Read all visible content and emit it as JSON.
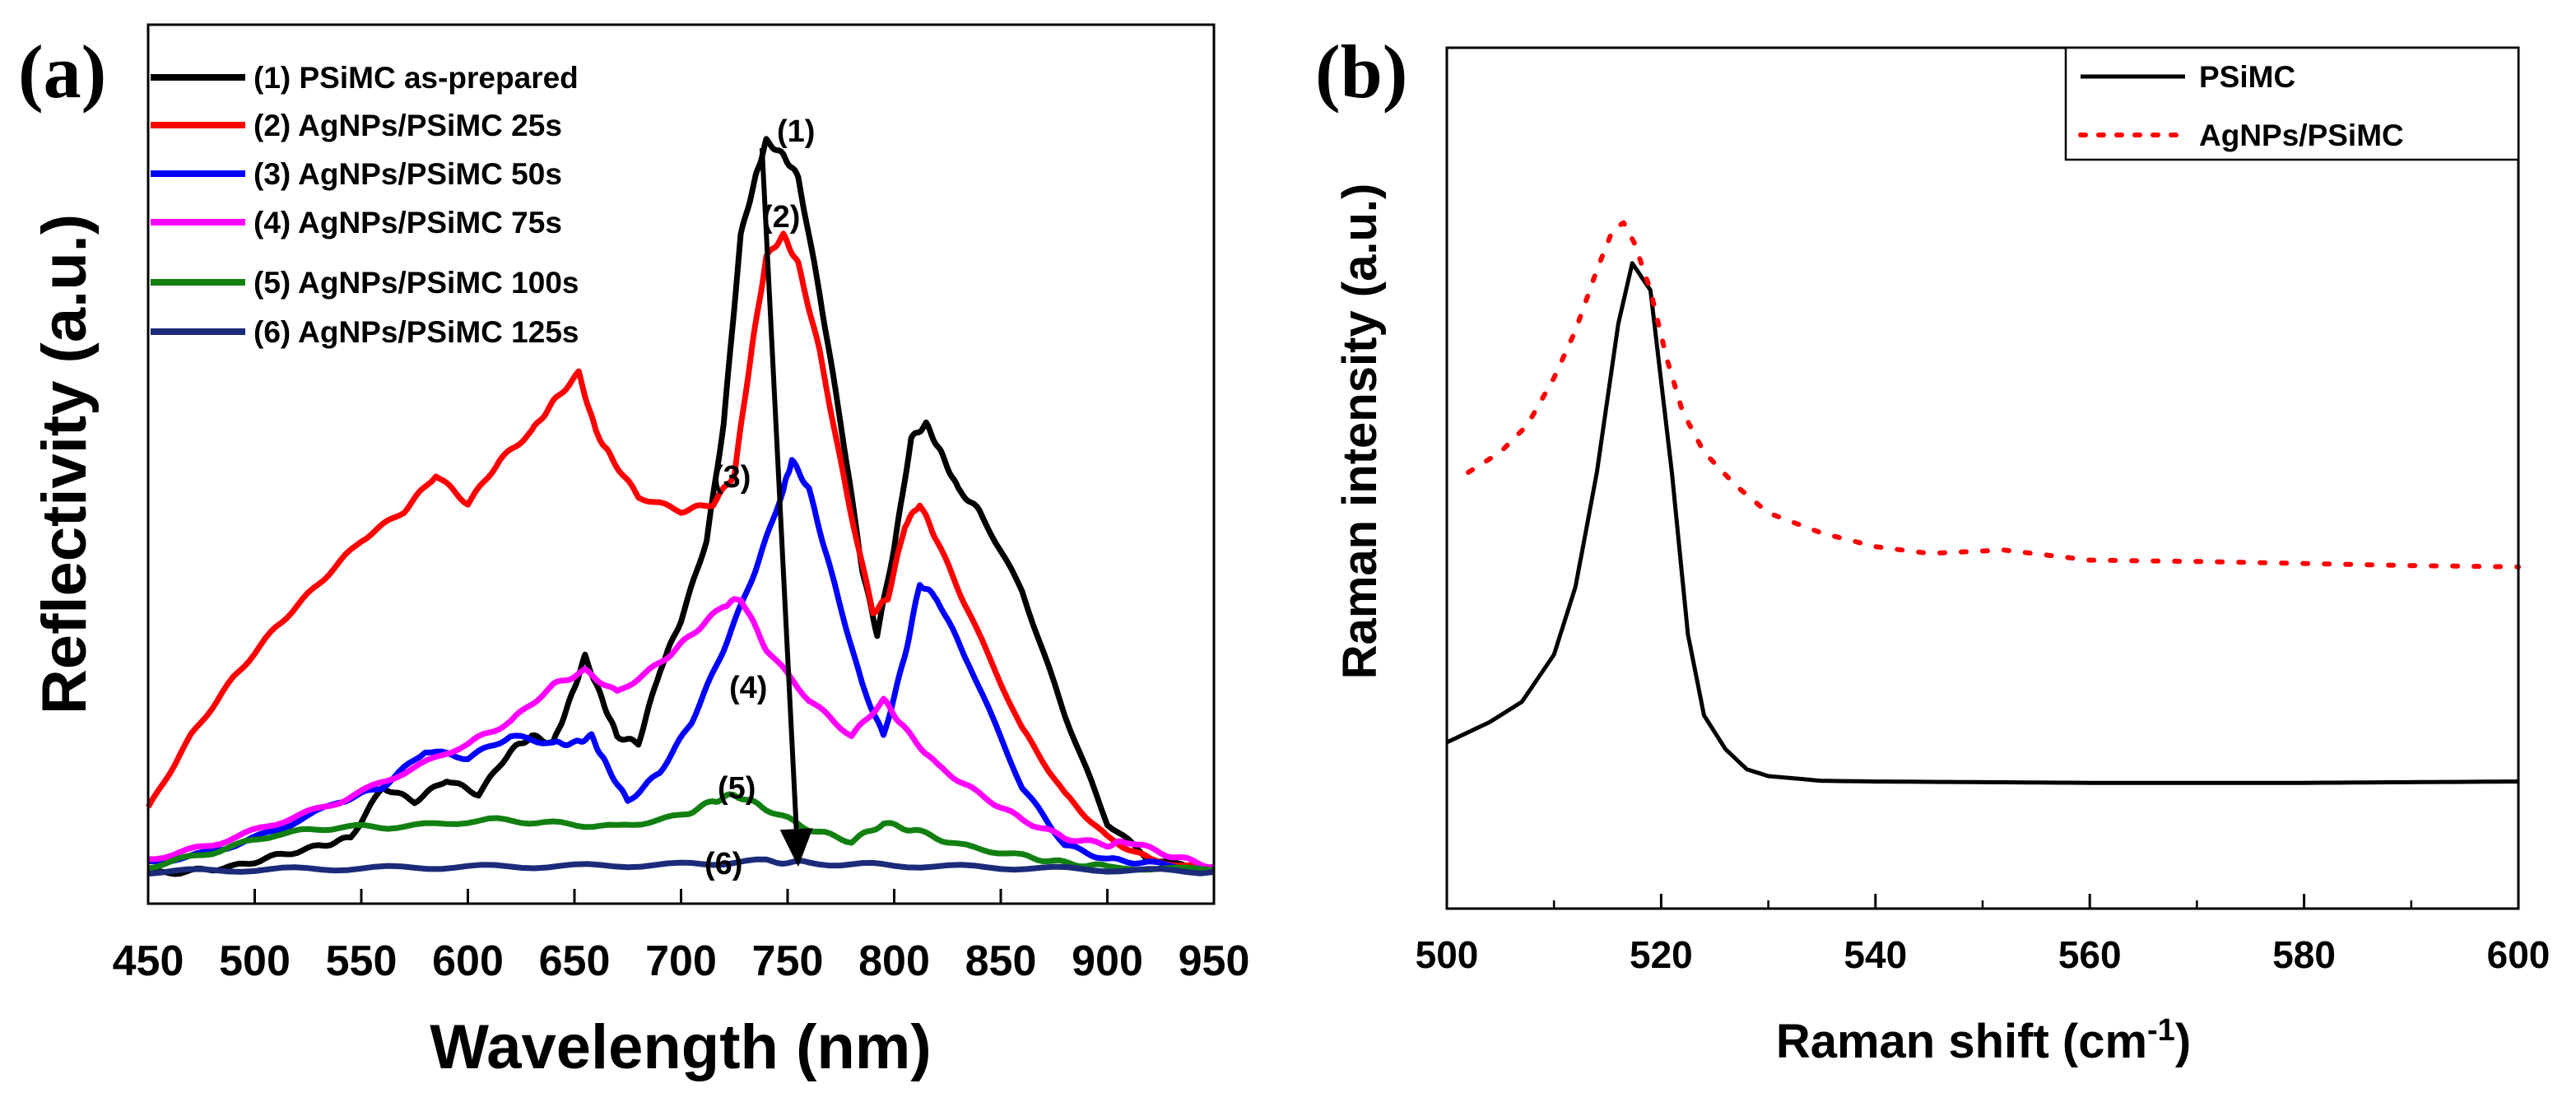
{
  "chart_data": [
    {
      "panel": "(a)",
      "type": "line",
      "title": "",
      "xlabel": "Wavelength (nm)",
      "ylabel": "Reflectivity (a.u.)",
      "xlim": [
        450,
        950
      ],
      "ylim": [
        0,
        100
      ],
      "xticks": [
        450,
        500,
        550,
        600,
        650,
        700,
        750,
        800,
        850,
        900,
        950
      ],
      "yticks_shown": false,
      "legend_position": "top-left",
      "series": [
        {
          "name": "(1) PSiMC as-prepared",
          "color": "#000000",
          "x": [
            450,
            470,
            490,
            510,
            530,
            545,
            560,
            575,
            590,
            605,
            620,
            630,
            640,
            648,
            655,
            663,
            670,
            680,
            690,
            700,
            712,
            720,
            728,
            735,
            740,
            748,
            755,
            765,
            775,
            785,
            792,
            800,
            808,
            815,
            822,
            830,
            840,
            860,
            880,
            900,
            920,
            950
          ],
          "y": [
            0,
            0.4,
            1,
            2.5,
            3.8,
            5,
            12,
            10,
            13,
            11,
            17,
            19,
            18,
            24,
            30,
            24,
            19,
            18,
            28,
            35,
            46,
            62,
            88,
            96,
            101,
            99,
            96,
            80,
            62,
            42,
            33,
            45,
            60,
            62,
            58,
            53,
            50,
            39,
            22,
            7,
            2,
            0.3
          ]
        },
        {
          "name": "(2) AgNPs/PSiMC 25s",
          "color": "#ff0000",
          "x": [
            450,
            470,
            490,
            510,
            530,
            550,
            570,
            585,
            600,
            615,
            630,
            640,
            652,
            660,
            668,
            680,
            700,
            715,
            725,
            733,
            740,
            748,
            755,
            765,
            778,
            790,
            797,
            805,
            812,
            820,
            835,
            860,
            880,
            900,
            920,
            950
          ],
          "y": [
            9,
            19,
            27,
            34,
            40,
            46,
            50,
            55,
            51,
            57,
            61,
            65,
            69,
            61,
            57,
            52,
            50,
            51,
            55,
            72,
            85,
            88,
            84,
            72,
            52,
            36,
            38,
            48,
            51,
            46,
            36,
            20,
            11,
            5,
            2,
            0.5
          ]
        },
        {
          "name": "(3) AgNPs/PSiMC 50s",
          "color": "#0000ff",
          "x": [
            450,
            480,
            510,
            540,
            560,
            580,
            600,
            620,
            640,
            650,
            658,
            665,
            675,
            690,
            705,
            720,
            735,
            748,
            752,
            760,
            770,
            785,
            795,
            805,
            812,
            820,
            835,
            860,
            880,
            900,
            920,
            950
          ],
          "y": [
            1.5,
            3,
            6,
            10,
            12,
            17,
            16,
            19,
            18,
            18,
            19,
            15,
            10,
            14,
            21,
            31,
            42,
            53,
            57,
            53,
            42,
            26,
            19,
            30,
            40,
            38,
            29,
            12,
            4,
            2,
            1.5,
            0.5
          ]
        },
        {
          "name": "(4) AgNPs/PSiMC 75s",
          "color": "#ff00ff",
          "x": [
            450,
            480,
            510,
            540,
            570,
            600,
            620,
            640,
            655,
            670,
            690,
            705,
            720,
            728,
            740,
            760,
            780,
            795,
            805,
            820,
            840,
            860,
            880,
            900,
            910,
            930,
            950
          ],
          "y": [
            2,
            4,
            7,
            10,
            14,
            18,
            21,
            26,
            28,
            25,
            29,
            33,
            37,
            38,
            31,
            24,
            19,
            24,
            20,
            15,
            11,
            7.5,
            5,
            4,
            4.5,
            2.5,
            1
          ]
        },
        {
          "name": "(5) AgNPs/PSiMC 100s",
          "color": "#118011",
          "x": [
            450,
            480,
            510,
            540,
            570,
            610,
            640,
            670,
            700,
            715,
            725,
            740,
            760,
            780,
            795,
            810,
            830,
            860,
            880,
            900,
            950
          ],
          "y": [
            1,
            3,
            5.5,
            6.5,
            6.5,
            7.5,
            7,
            6.5,
            8,
            10,
            11,
            9,
            6.2,
            4.5,
            7,
            6,
            4,
            2.5,
            1.5,
            1,
            0.5
          ]
        },
        {
          "name": "(6) AgNPs/PSiMC 125s",
          "color": "#1c2a7a",
          "x": [
            450,
            500,
            550,
            600,
            650,
            700,
            740,
            760,
            800,
            850,
            900,
            950
          ],
          "y": [
            0.3,
            0.6,
            0.8,
            1,
            1.1,
            1.3,
            1.8,
            1.5,
            1.2,
            0.9,
            0.6,
            0.3
          ]
        }
      ],
      "annotations": [
        "(1)",
        "(2)",
        "(3)",
        "(4)",
        "(5)",
        "(6)"
      ],
      "arrow": {
        "from": [
          738,
          100
        ],
        "to": [
          755,
          1
        ]
      }
    },
    {
      "panel": "(b)",
      "type": "line",
      "title": "",
      "xlabel": "Raman shift (cm",
      "xlabel_superscript": "-1",
      "xlabel_suffix": ")",
      "ylabel": "Raman intensity (a.u.)",
      "xlim": [
        500,
        600
      ],
      "ylim": [
        0,
        100
      ],
      "xticks": [
        500,
        520,
        540,
        560,
        580,
        600
      ],
      "yticks_shown": false,
      "legend_position": "top-right",
      "series": [
        {
          "name": "PSiMC",
          "color": "#000000",
          "style": "solid",
          "x": [
            500,
            504,
            507,
            510,
            512,
            514,
            516,
            517.3,
            519,
            521,
            522.5,
            524,
            526,
            528,
            530,
            535,
            540,
            550,
            560,
            570,
            580,
            590,
            600
          ],
          "y": [
            15,
            18,
            21,
            28,
            38,
            55,
            77,
            86,
            82,
            55,
            31,
            19,
            14,
            11,
            10,
            9.3,
            9.2,
            9.1,
            9,
            9,
            9,
            9.1,
            9.2
          ]
        },
        {
          "name": "AgNPs/PSiMC",
          "color": "#ff0000",
          "style": "dotted",
          "x": [
            502,
            505,
            507.5,
            510,
            512,
            514,
            515.5,
            516.5,
            517.5,
            519,
            520.5,
            522,
            524,
            527,
            530,
            535,
            540,
            545,
            552,
            560,
            570,
            580,
            590,
            600
          ],
          "y": [
            55,
            58,
            62,
            69,
            76,
            85,
            91,
            92,
            89,
            82,
            72,
            64,
            58,
            53,
            49,
            46,
            44,
            43,
            43.5,
            42,
            41.8,
            41.5,
            41.2,
            41
          ]
        }
      ]
    }
  ]
}
